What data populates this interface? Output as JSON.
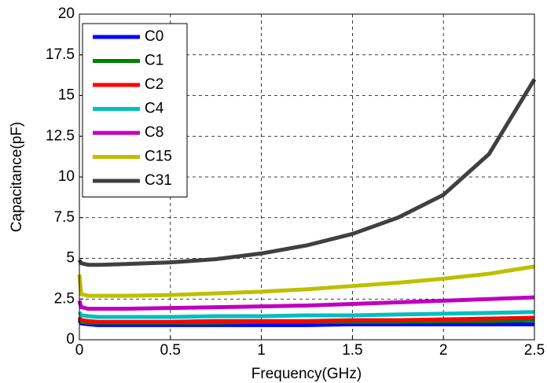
{
  "chart_data": {
    "type": "line",
    "xlabel": "Frequency(GHz)",
    "ylabel": "Capacitance(pF)",
    "x": [
      0,
      0.01,
      0.05,
      0.1,
      0.25,
      0.5,
      0.75,
      1,
      1.25,
      1.5,
      1.75,
      2,
      2.25,
      2.5
    ],
    "series": [
      {
        "name": "C0",
        "color": "#0000ff",
        "values": [
          1.2,
          1.0,
          0.95,
          0.9,
          0.9,
          0.9,
          0.9,
          0.9,
          0.9,
          0.95,
          0.95,
          0.95,
          0.95,
          0.95
        ]
      },
      {
        "name": "C1",
        "color": "#008000",
        "values": [
          1.3,
          1.1,
          1.05,
          1.05,
          1.05,
          1.05,
          1.05,
          1.1,
          1.1,
          1.1,
          1.1,
          1.15,
          1.15,
          1.2
        ]
      },
      {
        "name": "C2",
        "color": "#ff0000",
        "values": [
          1.4,
          1.2,
          1.15,
          1.1,
          1.1,
          1.1,
          1.15,
          1.15,
          1.15,
          1.2,
          1.2,
          1.25,
          1.3,
          1.35
        ]
      },
      {
        "name": "C4",
        "color": "#00bfbf",
        "values": [
          1.7,
          1.5,
          1.45,
          1.4,
          1.4,
          1.4,
          1.45,
          1.45,
          1.5,
          1.5,
          1.55,
          1.6,
          1.65,
          1.7
        ]
      },
      {
        "name": "C8",
        "color": "#bf00bf",
        "values": [
          2.4,
          2.0,
          1.9,
          1.9,
          1.9,
          1.95,
          2.0,
          2.05,
          2.1,
          2.2,
          2.3,
          2.4,
          2.5,
          2.6
        ]
      },
      {
        "name": "C15",
        "color": "#bfbf00",
        "values": [
          4.0,
          2.8,
          2.7,
          2.7,
          2.7,
          2.75,
          2.85,
          2.95,
          3.1,
          3.3,
          3.5,
          3.75,
          4.05,
          4.5
        ]
      },
      {
        "name": "C31",
        "color": "#404040",
        "values": [
          4.9,
          4.7,
          4.6,
          4.6,
          4.65,
          4.75,
          4.95,
          5.3,
          5.8,
          6.5,
          7.5,
          8.9,
          11.4,
          16.0
        ]
      }
    ],
    "xlim": [
      0,
      2.5
    ],
    "xticks": [
      0,
      0.5,
      1,
      1.5,
      2,
      2.5
    ],
    "ylim": [
      0,
      20
    ],
    "yticks": [
      0,
      2.5,
      5,
      7.5,
      10,
      12.5,
      15,
      17.5,
      20
    ],
    "grid": true,
    "legend": "north west"
  }
}
